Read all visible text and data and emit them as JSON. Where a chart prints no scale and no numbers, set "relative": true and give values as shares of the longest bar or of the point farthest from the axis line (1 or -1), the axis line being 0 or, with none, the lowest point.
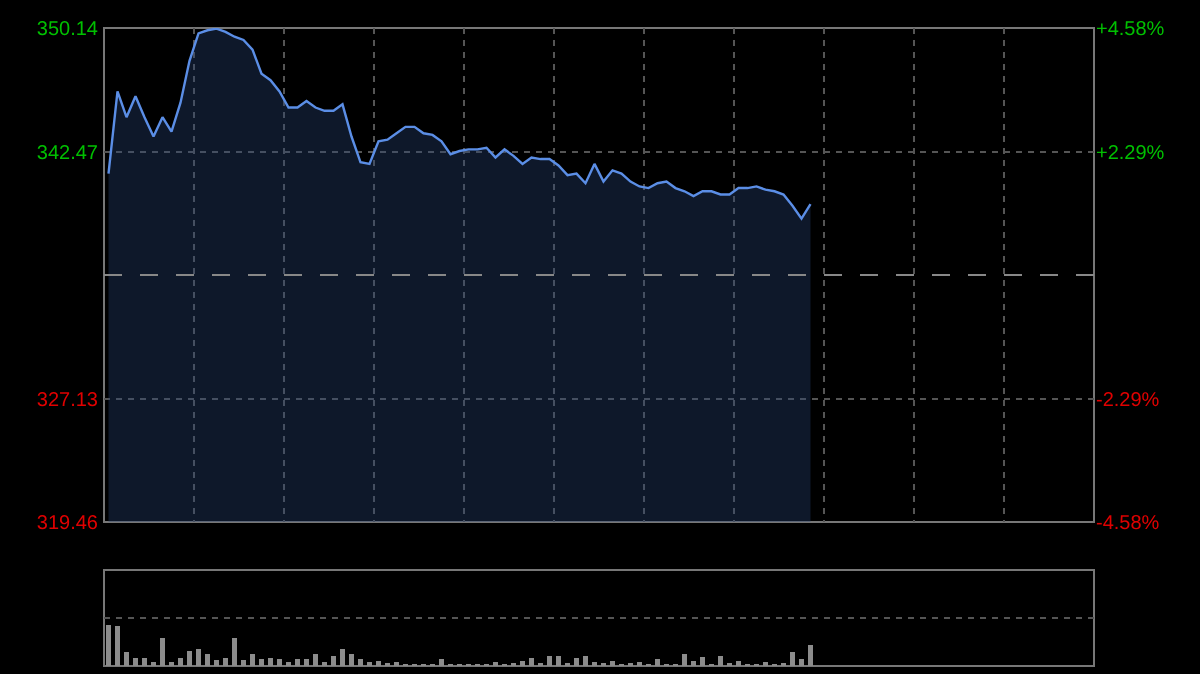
{
  "chart_data": [
    {
      "type": "area",
      "categories": [
        null,
        null,
        null,
        null,
        null,
        null,
        null,
        null,
        null,
        null,
        null,
        null,
        null,
        null,
        null,
        null,
        null,
        null,
        null,
        null,
        null,
        null,
        null,
        null,
        null,
        null,
        null,
        null,
        null,
        null,
        null,
        null,
        null,
        null,
        null,
        null,
        null,
        null,
        null,
        null,
        null,
        null,
        null,
        null,
        null,
        null,
        null,
        null,
        null,
        null,
        null,
        null,
        null,
        null,
        null,
        null,
        null,
        null,
        null,
        null,
        null,
        null,
        null,
        null,
        null,
        null,
        null,
        null,
        null,
        null,
        null,
        null,
        null,
        null,
        null,
        null,
        null,
        null,
        null,
        null,
        null,
        null,
        null,
        null,
        null,
        null,
        null,
        null,
        null,
        null,
        null,
        null,
        null,
        null,
        null,
        null,
        null,
        null,
        null,
        null,
        null,
        null,
        null,
        null,
        null,
        null,
        null,
        null,
        null,
        null
      ],
      "series": [
        {
          "color": "#5b8ee6",
          "values": [
            341.1,
            346.2,
            344.6,
            345.9,
            344.6,
            343.4,
            344.6,
            343.7,
            345.5,
            348.1,
            349.8,
            350.0,
            350.1,
            349.9,
            349.6,
            349.4,
            348.8,
            347.3,
            346.9,
            346.2,
            345.2,
            345.2,
            345.6,
            345.2,
            345.0,
            345.0,
            345.4,
            343.4,
            341.8,
            341.7,
            343.1,
            343.2,
            343.6,
            344.0,
            344.0,
            343.6,
            343.5,
            343.1,
            342.3,
            342.5,
            342.6,
            342.6,
            342.7,
            342.1,
            342.6,
            342.2,
            341.7,
            342.1,
            342.0,
            342.0,
            341.6,
            341.0,
            341.1,
            340.5,
            341.7,
            340.6,
            341.3,
            341.1,
            340.6,
            340.3,
            340.2,
            340.5,
            340.6,
            340.2,
            340.0,
            339.7,
            340.0,
            340.0,
            339.8,
            339.8,
            340.2,
            340.2,
            340.3,
            340.1,
            340.0,
            339.8,
            339.1,
            338.3,
            339.2,
            null,
            null,
            null,
            null,
            null,
            null,
            null,
            null,
            null,
            null,
            null,
            null,
            null,
            null,
            null,
            null,
            null,
            null,
            null,
            null,
            null,
            null,
            null,
            null,
            null,
            null,
            null,
            null,
            null,
            null,
            null
          ]
        }
      ],
      "ylim": [
        319.46,
        350.14
      ],
      "yticks": [
        319.46,
        327.13,
        342.47,
        350.14
      ],
      "y2lim": [
        -4.58,
        4.58
      ],
      "y2ticks": [
        {
          "value": -4.58,
          "label": "-4.58%"
        },
        {
          "value": -2.29,
          "label": "-2.29%"
        },
        {
          "value": 2.29,
          "label": "+2.29%"
        },
        {
          "value": 4.58,
          "label": "+4.58%"
        }
      ],
      "ref_lines": [
        {
          "axis": "y",
          "value": 334.8
        }
      ],
      "grid": true
    },
    {
      "type": "bar",
      "relative": true,
      "categories": [
        null,
        null,
        null,
        null,
        null,
        null,
        null,
        null,
        null,
        null,
        null,
        null,
        null,
        null,
        null,
        null,
        null,
        null,
        null,
        null,
        null,
        null,
        null,
        null,
        null,
        null,
        null,
        null,
        null,
        null,
        null,
        null,
        null,
        null,
        null,
        null,
        null,
        null,
        null,
        null,
        null,
        null,
        null,
        null,
        null,
        null,
        null,
        null,
        null,
        null,
        null,
        null,
        null,
        null,
        null,
        null,
        null,
        null,
        null,
        null,
        null,
        null,
        null,
        null,
        null,
        null,
        null,
        null,
        null,
        null,
        null,
        null,
        null,
        null,
        null,
        null,
        null,
        null,
        null,
        null,
        null,
        null,
        null,
        null,
        null,
        null,
        null,
        null,
        null,
        null,
        null,
        null,
        null,
        null,
        null,
        null,
        null,
        null,
        null,
        null,
        null,
        null,
        null,
        null,
        null,
        null,
        null,
        null,
        null,
        null
      ],
      "series": [
        {
          "color": "#8c8c8c",
          "values": [
            1.0,
            0.97,
            0.33,
            0.2,
            0.2,
            0.1,
            0.67,
            0.1,
            0.2,
            0.37,
            0.42,
            0.3,
            0.15,
            0.2,
            0.67,
            0.15,
            0.3,
            0.17,
            0.2,
            0.17,
            0.1,
            0.17,
            0.17,
            0.28,
            0.1,
            0.25,
            0.42,
            0.3,
            0.17,
            0.1,
            0.13,
            0.08,
            0.1,
            0.06,
            0.05,
            0.05,
            0.05,
            0.17,
            0.05,
            0.05,
            0.05,
            0.05,
            0.05,
            0.1,
            0.06,
            0.08,
            0.13,
            0.2,
            0.08,
            0.25,
            0.25,
            0.08,
            0.2,
            0.25,
            0.1,
            0.08,
            0.13,
            0.06,
            0.08,
            0.1,
            0.06,
            0.17,
            0.06,
            0.06,
            0.3,
            0.13,
            0.22,
            0.06,
            0.25,
            0.08,
            0.13,
            0.06,
            0.06,
            0.1,
            0.06,
            0.08,
            0.33,
            0.17,
            0.5,
            null,
            null,
            null,
            null,
            null,
            null,
            null,
            null,
            null,
            null,
            null,
            null,
            null,
            null,
            null,
            null,
            null,
            null,
            null,
            null,
            null,
            null,
            null,
            null,
            null,
            null,
            null,
            null,
            null,
            null,
            null
          ]
        }
      ],
      "grid": true
    }
  ]
}
